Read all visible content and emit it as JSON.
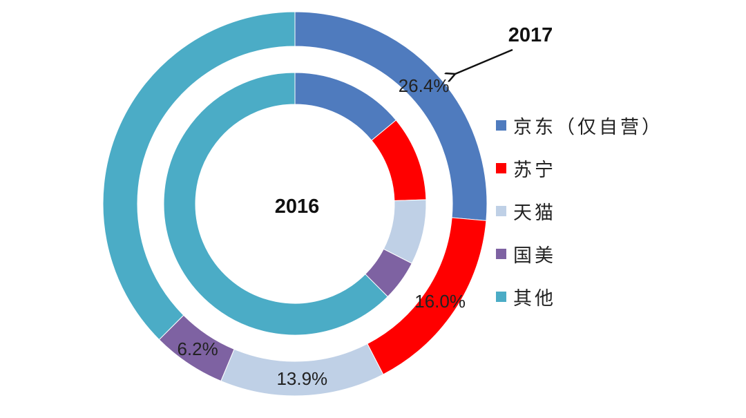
{
  "chart_data": {
    "type": "pie",
    "categories": [
      "京东（仅自营）",
      "苏宁",
      "天猫",
      "国美",
      "其他"
    ],
    "colors": [
      "#4F7BBE",
      "#FF0000",
      "#BFD0E6",
      "#7E62A2",
      "#4BACC6"
    ],
    "series": [
      {
        "name": "2017",
        "values": [
          26.4,
          16.0,
          13.9,
          6.2,
          37.5
        ],
        "labels": [
          "26.4%",
          "16.0%",
          "13.9%",
          "6.2%",
          ""
        ]
      },
      {
        "name": "2016",
        "values": [
          14.0,
          10.5,
          8.0,
          5.0,
          62.5
        ]
      }
    ]
  }
}
